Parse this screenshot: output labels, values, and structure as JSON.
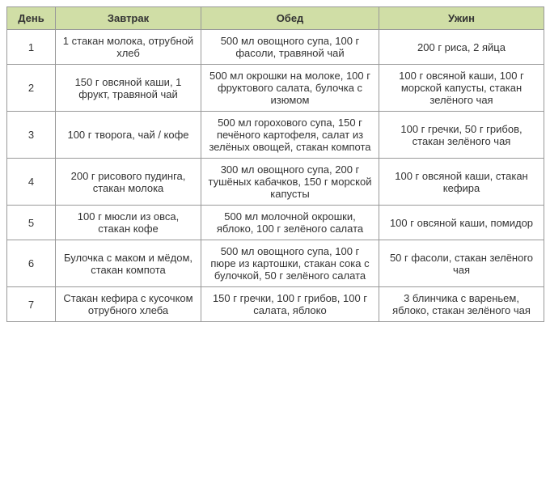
{
  "meal_table": {
    "columns": [
      "День",
      "Завтрак",
      "Обед",
      "Ужин"
    ],
    "header_bg": "#d0dea6",
    "border_color": "#999999",
    "font_size": 13,
    "rows": [
      {
        "day": "1",
        "breakfast": "1 стакан молока, отрубной хлеб",
        "lunch": "500 мл овощного супа, 100 г фасоли, травяной чай",
        "dinner": "200 г риса, 2 яйца"
      },
      {
        "day": "2",
        "breakfast": "150 г овсяной каши, 1 фрукт, травяной чай",
        "lunch": "500 мл окрошки на молоке, 100 г фруктового салата, булочка с изюмом",
        "dinner": "100 г овсяной каши, 100 г морской капусты, стакан зелёного чая"
      },
      {
        "day": "3",
        "breakfast": "100 г творога, чай / кофе",
        "lunch": "500 мл горохового супа, 150 г печёного картофеля, салат из зелёных овощей, стакан компота",
        "dinner": "100 г гречки, 50 г грибов, стакан зелёного чая"
      },
      {
        "day": "4",
        "breakfast": "200 г рисового пудинга, стакан молока",
        "lunch": "300 мл овощного супа, 200 г тушёных кабачков, 150 г морской капусты",
        "dinner": "100 г овсяной каши, стакан кефира"
      },
      {
        "day": "5",
        "breakfast": "100 г мюсли из овса, стакан кофе",
        "lunch": "500 мл молочной окрошки, яблоко, 100 г зелёного салата",
        "dinner": "100 г овсяной каши, помидор"
      },
      {
        "day": "6",
        "breakfast": "Булочка с маком и мёдом, стакан компота",
        "lunch": "500 мл овощного супа, 100 г пюре из картошки, стакан сока с булочкой, 50 г зелёного салата",
        "dinner": "50 г фасоли, стакан зелёного чая"
      },
      {
        "day": "7",
        "breakfast": "Стакан кефира с кусочком отрубного хлеба",
        "lunch": "150 г гречки, 100 г грибов, 100 г салата, яблоко",
        "dinner": "3 блинчика с вареньем, яблоко, стакан зелёного чая"
      }
    ]
  }
}
